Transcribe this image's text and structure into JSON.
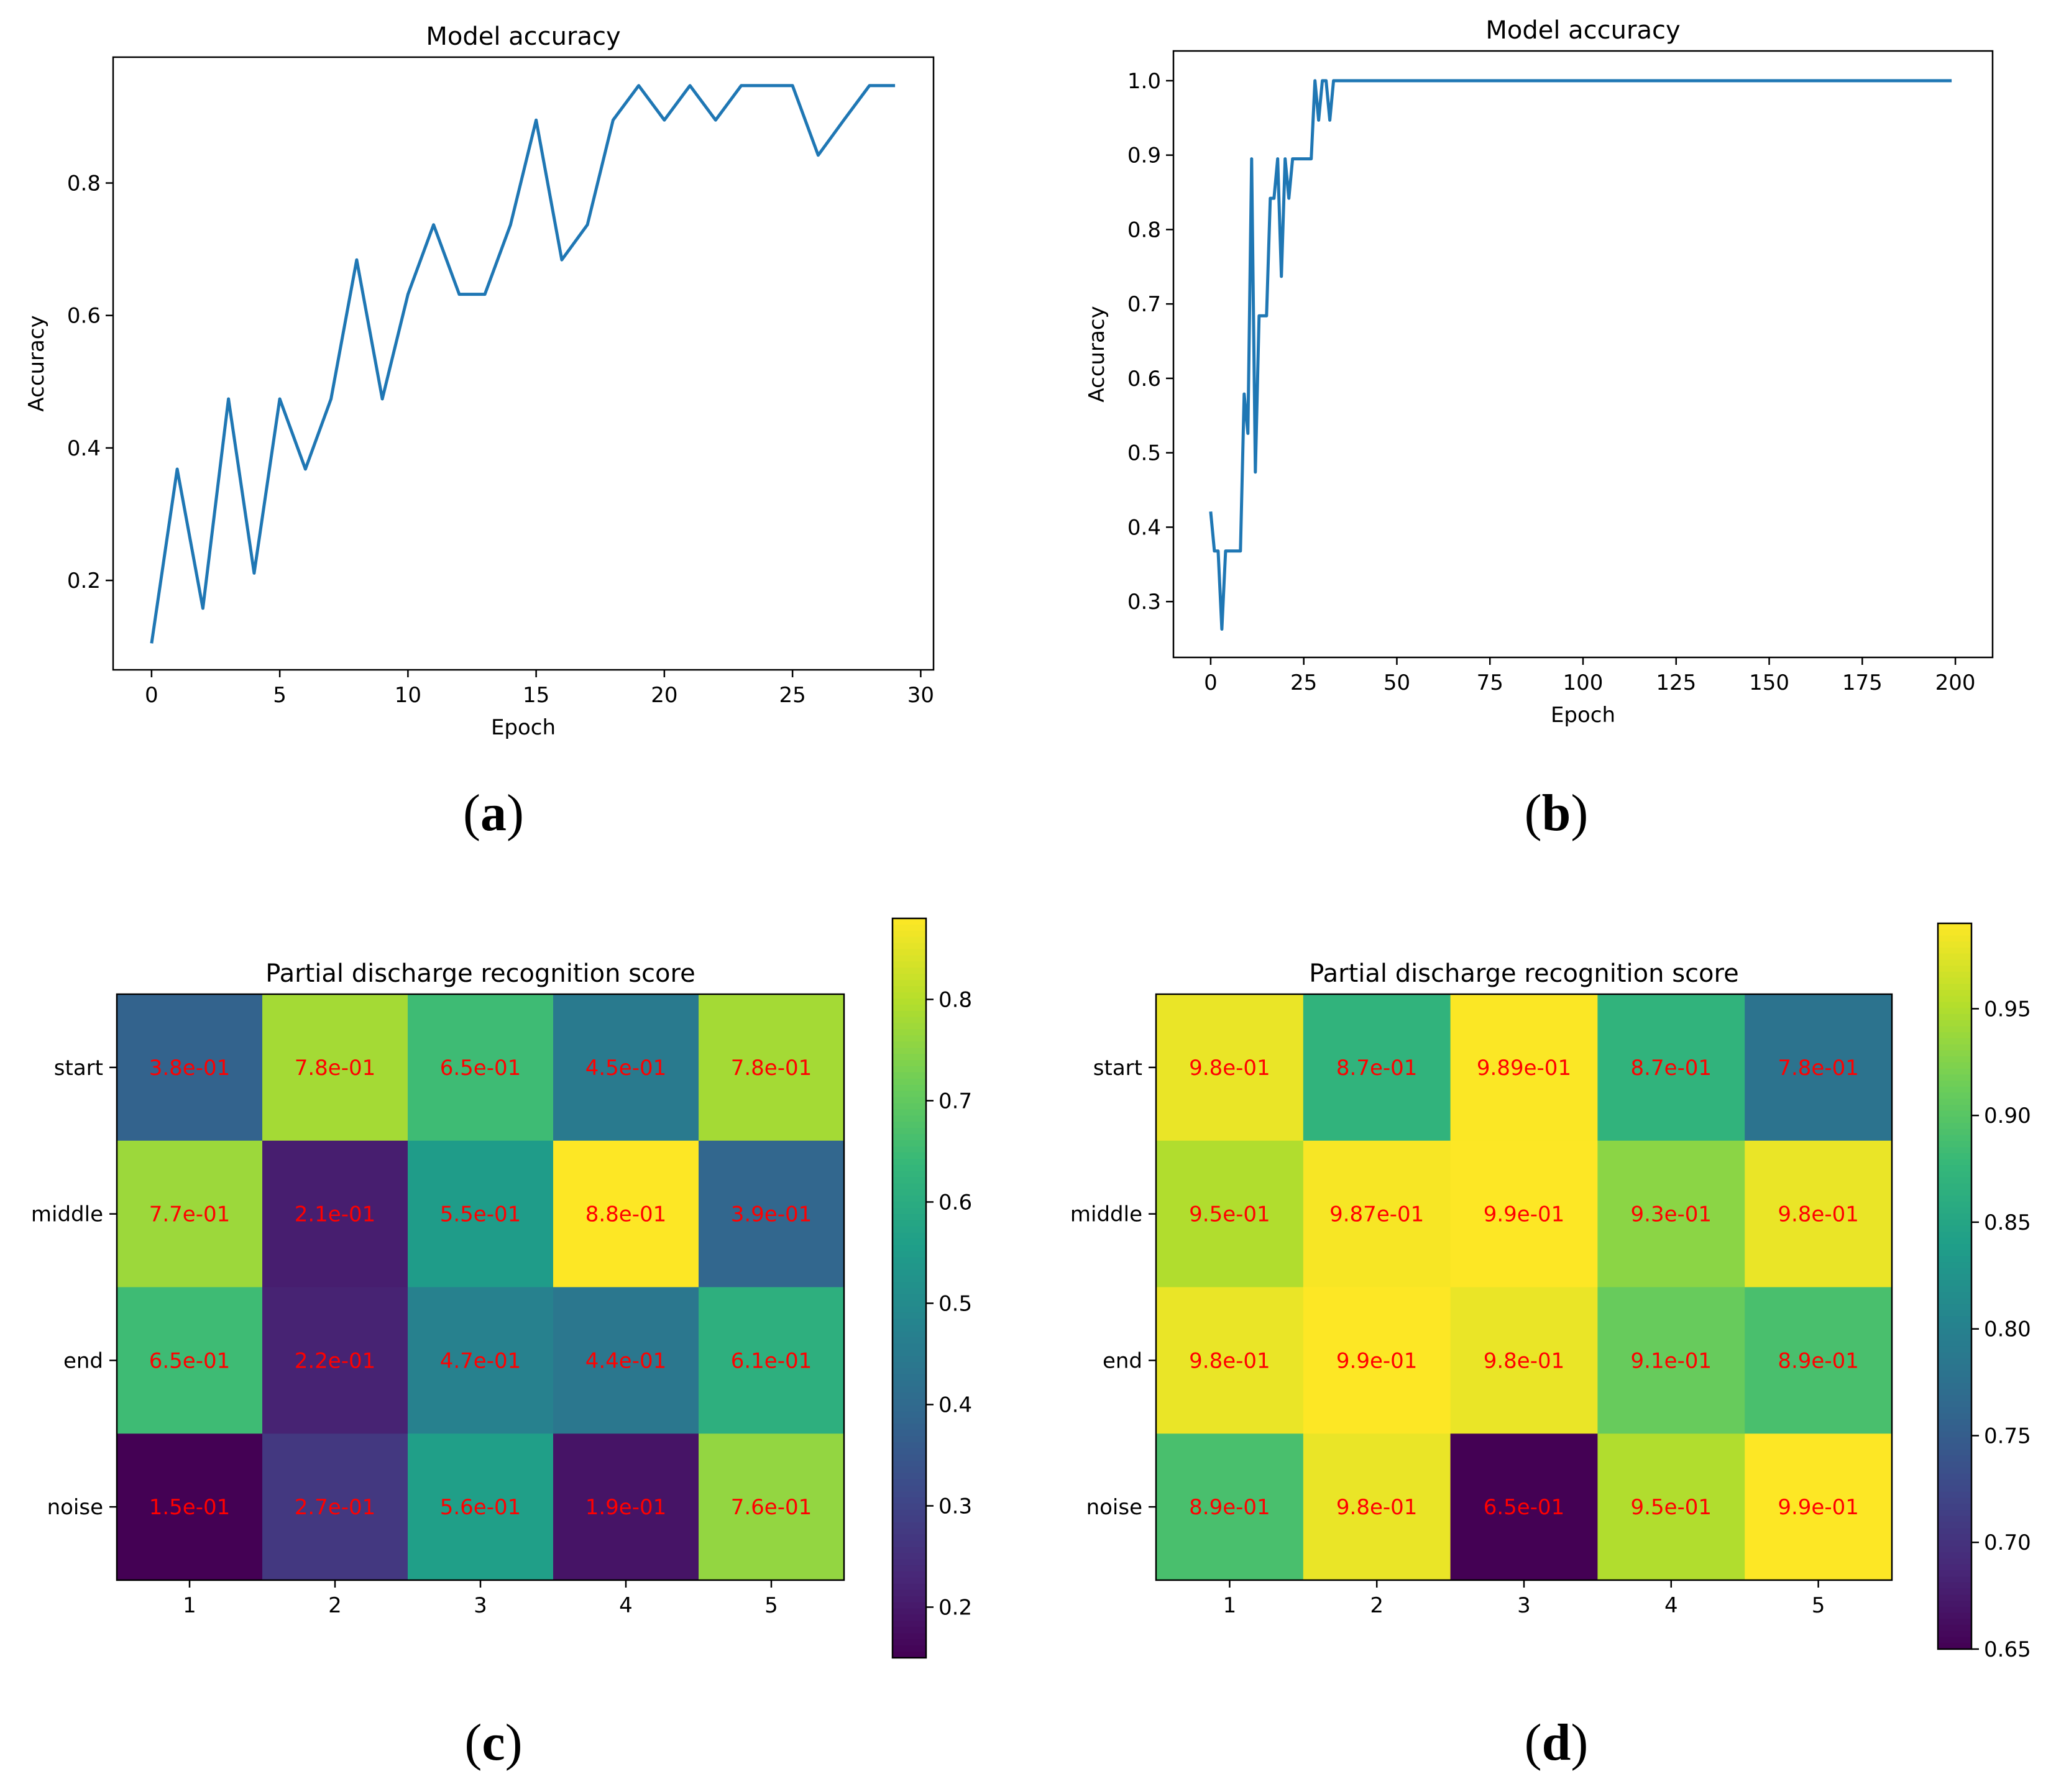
{
  "chart_data": [
    {
      "id": "a",
      "type": "line",
      "panel_label": "a",
      "title": "Model accuracy",
      "xlabel": "Epoch",
      "ylabel": "Accuracy",
      "xlim": [
        -1.5,
        30.5
      ],
      "ylim": [
        0.065,
        0.99
      ],
      "xticks": [
        0,
        5,
        10,
        15,
        20,
        25,
        30
      ],
      "yticks": [
        0.2,
        0.4,
        0.6,
        0.8
      ],
      "line_color": "#1f77b4",
      "x": [
        0,
        1,
        2,
        3,
        4,
        5,
        6,
        7,
        8,
        9,
        10,
        11,
        12,
        13,
        14,
        15,
        16,
        17,
        18,
        19,
        20,
        21,
        22,
        23,
        24,
        25,
        26,
        27,
        28,
        29
      ],
      "y": [
        0.105,
        0.368,
        0.158,
        0.474,
        0.211,
        0.474,
        0.368,
        0.474,
        0.684,
        0.474,
        0.632,
        0.737,
        0.632,
        0.632,
        0.737,
        0.895,
        0.684,
        0.737,
        0.895,
        0.947,
        0.895,
        0.947,
        0.895,
        0.947,
        0.947,
        0.947,
        0.842,
        0.895,
        0.947,
        0.947
      ]
    },
    {
      "id": "b",
      "type": "line",
      "panel_label": "b",
      "title": "Model accuracy",
      "xlabel": "Epoch",
      "ylabel": "Accuracy",
      "xlim": [
        -10,
        210
      ],
      "ylim": [
        0.225,
        1.04
      ],
      "xticks": [
        0,
        25,
        50,
        75,
        100,
        125,
        150,
        175,
        200
      ],
      "yticks": [
        0.3,
        0.4,
        0.5,
        0.6,
        0.7,
        0.8,
        0.9,
        1.0
      ],
      "ytick_labels": [
        "0.3",
        "0.4",
        "0.5",
        "0.6",
        "0.7",
        "0.8",
        "0.9",
        "1.0"
      ],
      "line_color": "#1f77b4",
      "x": [
        0,
        1,
        2,
        3,
        4,
        5,
        6,
        7,
        8,
        9,
        10,
        11,
        12,
        13,
        14,
        15,
        16,
        17,
        18,
        19,
        20,
        21,
        22,
        23,
        24,
        25,
        26,
        27,
        28,
        29,
        30,
        31,
        32,
        33,
        34,
        35,
        50,
        100,
        150,
        199
      ],
      "y": [
        0.421,
        0.368,
        0.368,
        0.263,
        0.368,
        0.368,
        0.368,
        0.368,
        0.368,
        0.579,
        0.526,
        0.895,
        0.474,
        0.684,
        0.684,
        0.684,
        0.842,
        0.842,
        0.895,
        0.737,
        0.895,
        0.842,
        0.895,
        0.895,
        0.895,
        0.895,
        0.895,
        0.895,
        1.0,
        0.947,
        1.0,
        1.0,
        0.947,
        1.0,
        1.0,
        1.0,
        1.0,
        1.0,
        1.0,
        1.0
      ]
    },
    {
      "id": "c",
      "type": "heatmap",
      "panel_label": "c",
      "title": "Partial discharge recognition score",
      "columns": [
        "1",
        "2",
        "3",
        "4",
        "5"
      ],
      "rows": [
        "start",
        "middle",
        "end",
        "noise"
      ],
      "values": [
        [
          0.38,
          0.78,
          0.65,
          0.45,
          0.78
        ],
        [
          0.77,
          0.21,
          0.55,
          0.88,
          0.39
        ],
        [
          0.65,
          0.22,
          0.47,
          0.44,
          0.61
        ],
        [
          0.15,
          0.27,
          0.56,
          0.19,
          0.76
        ]
      ],
      "cell_labels": [
        [
          "3.8e-01",
          "7.8e-01",
          "6.5e-01",
          "4.5e-01",
          "7.8e-01"
        ],
        [
          "7.7e-01",
          "2.1e-01",
          "5.5e-01",
          "8.8e-01",
          "3.9e-01"
        ],
        [
          "6.5e-01",
          "2.2e-01",
          "4.7e-01",
          "4.4e-01",
          "6.1e-01"
        ],
        [
          "1.5e-01",
          "2.7e-01",
          "5.6e-01",
          "1.9e-01",
          "7.6e-01"
        ]
      ],
      "colormap": "viridis",
      "vmin": 0.15,
      "vmax": 0.88,
      "colorbar_ticks": [
        0.2,
        0.3,
        0.4,
        0.5,
        0.6,
        0.7,
        0.8
      ],
      "label_color": "#ff0000"
    },
    {
      "id": "d",
      "type": "heatmap",
      "panel_label": "d",
      "title": "Partial discharge recognition score",
      "columns": [
        "1",
        "2",
        "3",
        "4",
        "5"
      ],
      "rows": [
        "start",
        "middle",
        "end",
        "noise"
      ],
      "values": [
        [
          0.98,
          0.87,
          0.989,
          0.87,
          0.78
        ],
        [
          0.95,
          0.987,
          0.99,
          0.93,
          0.98
        ],
        [
          0.98,
          0.99,
          0.98,
          0.91,
          0.89
        ],
        [
          0.89,
          0.98,
          0.65,
          0.95,
          0.99
        ]
      ],
      "cell_labels": [
        [
          "9.8e-01",
          "8.7e-01",
          "9.89e-01",
          "8.7e-01",
          "7.8e-01"
        ],
        [
          "9.5e-01",
          "9.87e-01",
          "9.9e-01",
          "9.3e-01",
          "9.8e-01"
        ],
        [
          "9.8e-01",
          "9.9e-01",
          "9.8e-01",
          "9.1e-01",
          "8.9e-01"
        ],
        [
          "8.9e-01",
          "9.8e-01",
          "6.5e-01",
          "9.5e-01",
          "9.9e-01"
        ]
      ],
      "colormap": "viridis",
      "vmin": 0.65,
      "vmax": 0.99,
      "colorbar_ticks": [
        0.65,
        0.7,
        0.75,
        0.8,
        0.85,
        0.9,
        0.95
      ],
      "colorbar_tick_labels": [
        "0.65",
        "0.70",
        "0.75",
        "0.80",
        "0.85",
        "0.90",
        "0.95"
      ],
      "label_color": "#ff0000"
    }
  ]
}
